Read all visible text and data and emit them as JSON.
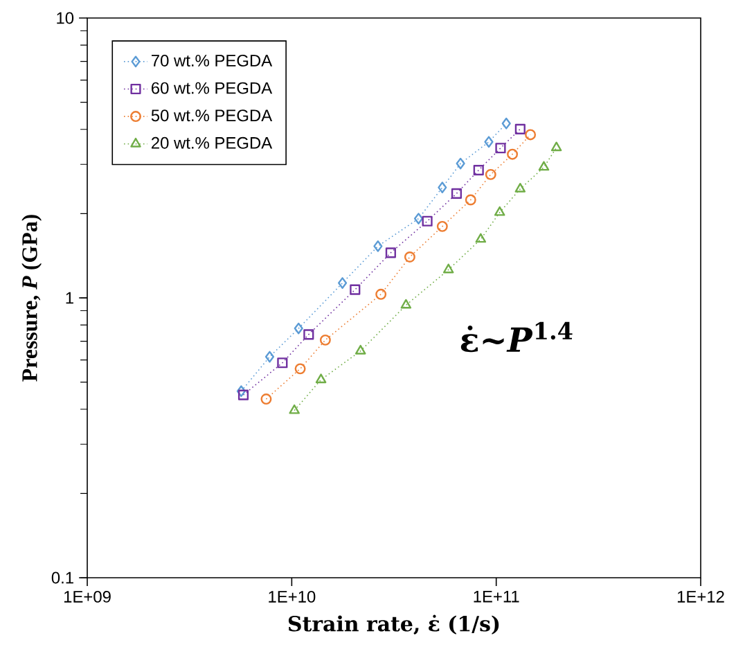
{
  "chart_data": {
    "type": "line",
    "xlabel": "Strain rate,  ε̇  (1/s)",
    "ylabel": "Pressure, *P* (GPa)",
    "log": "xy",
    "xlim": [
      1000000000.0,
      1000000000000.0
    ],
    "ylim": [
      0.1,
      10
    ],
    "xticks": [
      {
        "value": 1000000000.0,
        "label": "1E+09"
      },
      {
        "value": 10000000000.0,
        "label": "1E+10"
      },
      {
        "value": 100000000000.0,
        "label": "1E+11"
      },
      {
        "value": 1000000000000.0,
        "label": "1E+12"
      }
    ],
    "yticks": [
      0.1,
      1,
      10
    ],
    "grid": false,
    "legend": "top left",
    "line_style": "dotted",
    "annotations": [
      "ε̇~*P*$^{1.4}$"
    ],
    "series": [
      {
        "name": "70 wt.% PEGDA",
        "color": "#5b9bd5",
        "marker": "diamond",
        "x": [
          5660000000.0,
          7800000000.0,
          10800000000.0,
          17700000000.0,
          26400000000.0,
          41700000000.0,
          54500000000.0,
          66900000000.0,
          92000000000.0,
          112000000000.0
        ],
        "values": [
          0.464,
          0.616,
          0.778,
          1.13,
          1.53,
          1.92,
          2.48,
          3.02,
          3.61,
          4.2
        ]
      },
      {
        "name": "60 wt.% PEGDA",
        "color": "#7030a0",
        "marker": "square",
        "x": [
          5800000000.0,
          9000000000.0,
          12100000000.0,
          20400000000.0,
          30500000000.0,
          46000000000.0,
          64000000000.0,
          82000000000.0,
          105000000000.0,
          131000000000.0
        ],
        "values": [
          0.45,
          0.586,
          0.74,
          1.07,
          1.45,
          1.88,
          2.36,
          2.86,
          3.43,
          4.01
        ]
      },
      {
        "name": "50 wt.% PEGDA",
        "color": "#ed7d31",
        "marker": "circle",
        "x": [
          7500000000.0,
          11000000000.0,
          14600000000.0,
          27300000000.0,
          37800000000.0,
          54500000000.0,
          75000000000.0,
          94000000000.0,
          120000000000.0,
          147000000000.0
        ],
        "values": [
          0.435,
          0.558,
          0.707,
          1.03,
          1.4,
          1.8,
          2.24,
          2.76,
          3.26,
          3.83
        ]
      },
      {
        "name": "20 wt.% PEGDA",
        "color": "#70ad47",
        "marker": "triangle",
        "x": [
          10300000000.0,
          13900000000.0,
          21700000000.0,
          36200000000.0,
          58400000000.0,
          84000000000.0,
          104000000000.0,
          131000000000.0,
          171000000000.0,
          197000000000.0
        ],
        "values": [
          0.396,
          0.51,
          0.646,
          0.942,
          1.26,
          1.62,
          2.02,
          2.45,
          2.93,
          3.44
        ]
      }
    ]
  }
}
